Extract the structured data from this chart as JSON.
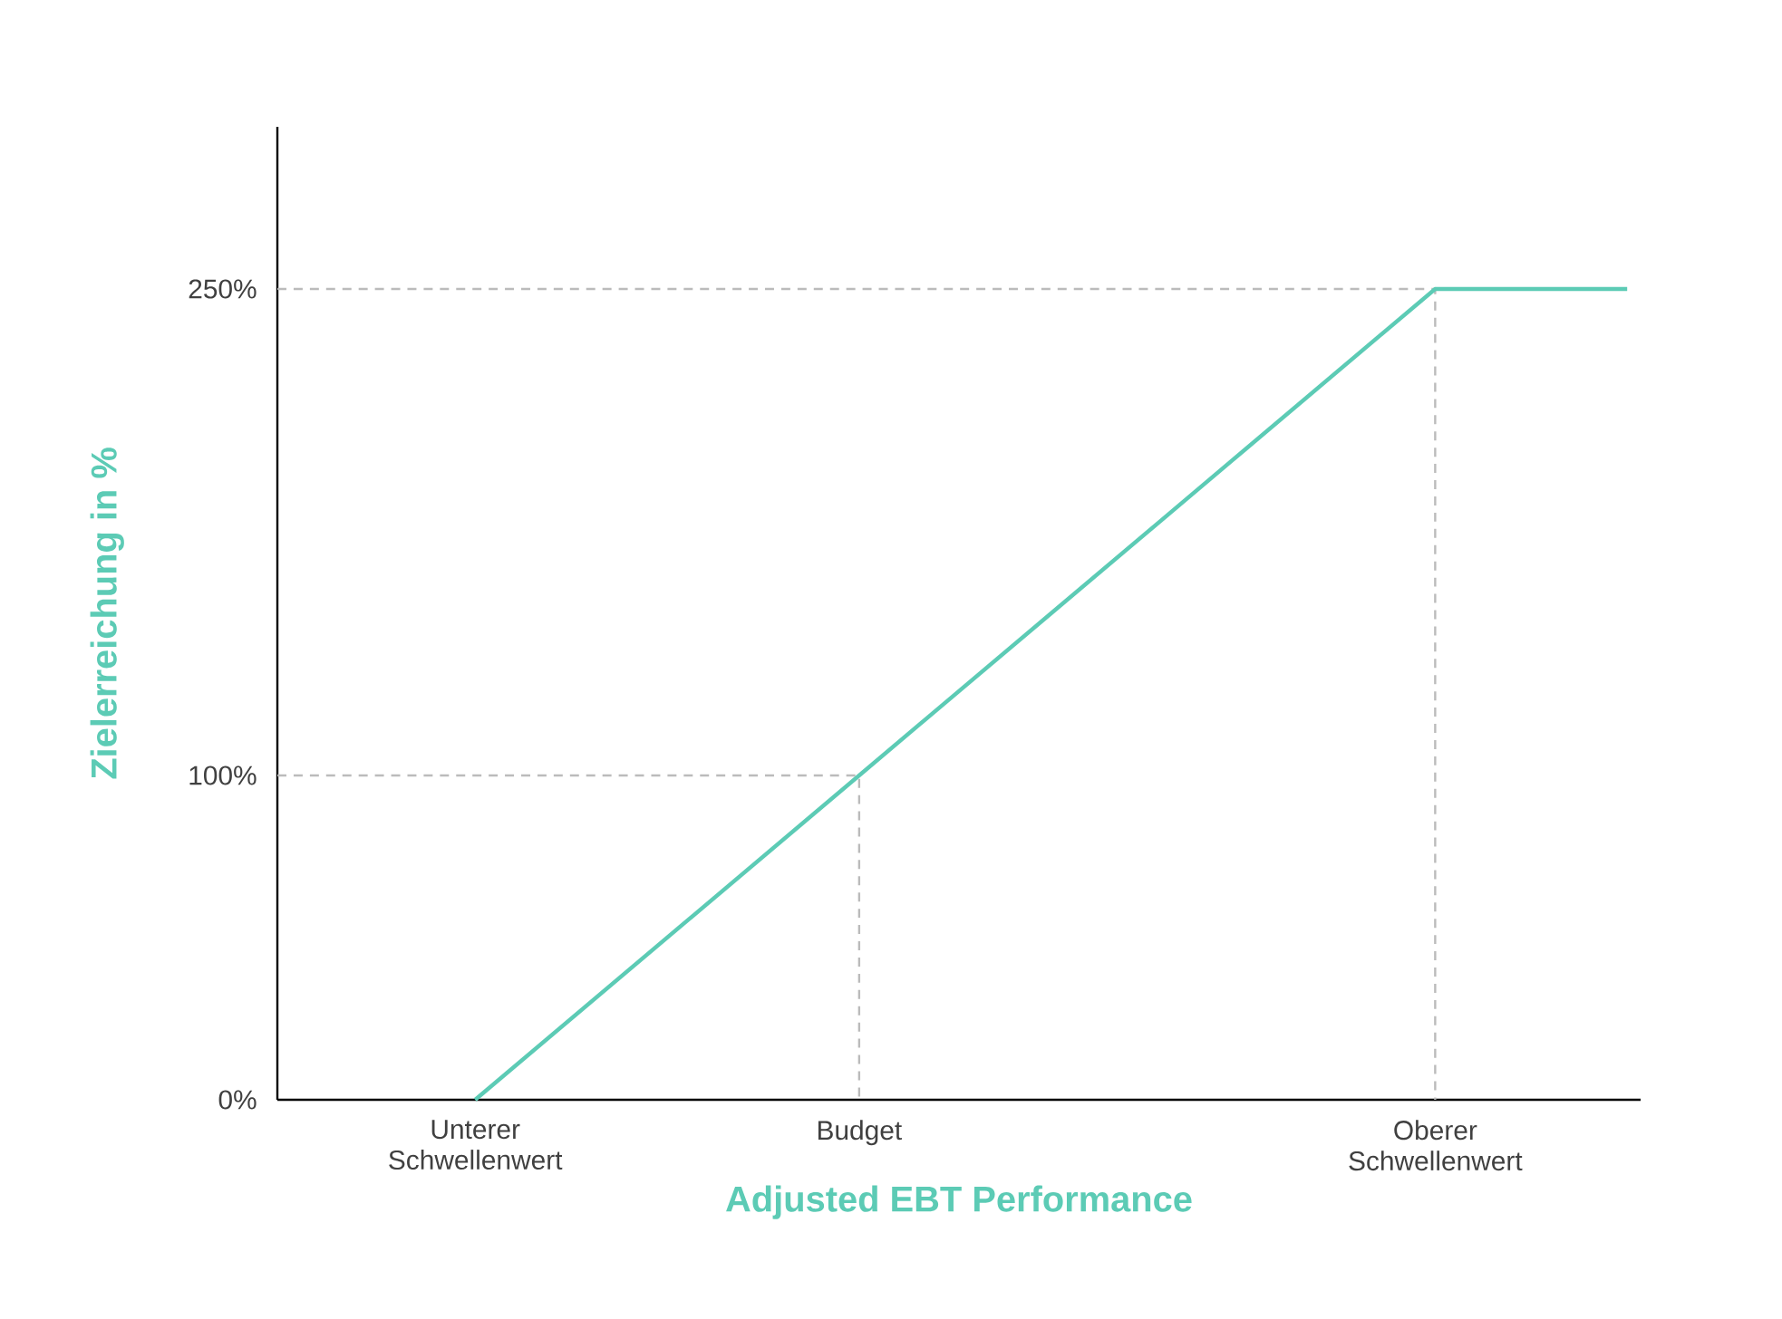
{
  "chart_data": {
    "type": "line",
    "xlabel": "Adjusted EBT Performance",
    "ylabel": "Zielerreichung in %",
    "categories": [
      "Unterer Schwellenwert",
      null,
      "Budget",
      null,
      null,
      "Oberer Schwellenwert",
      null
    ],
    "series": [
      {
        "color": "#5ccbb5",
        "values": [
          0,
          50,
          100,
          150,
          200,
          250,
          250
        ]
      }
    ],
    "ylim": [
      0,
      300
    ],
    "yticks": [
      {
        "value": 0,
        "label": "0%"
      },
      {
        "value": 100,
        "label": "100%"
      },
      {
        "value": 250,
        "label": "250%"
      }
    ],
    "ref_lines": [
      {
        "axis": "y",
        "value": 100,
        "color": "#bbbbbb",
        "line_style": "dashed"
      },
      {
        "axis": "y",
        "value": 250,
        "color": "#bbbbbb",
        "line_style": "dashed"
      }
    ],
    "grid": false,
    "marker": "none",
    "line_style": "solid"
  }
}
